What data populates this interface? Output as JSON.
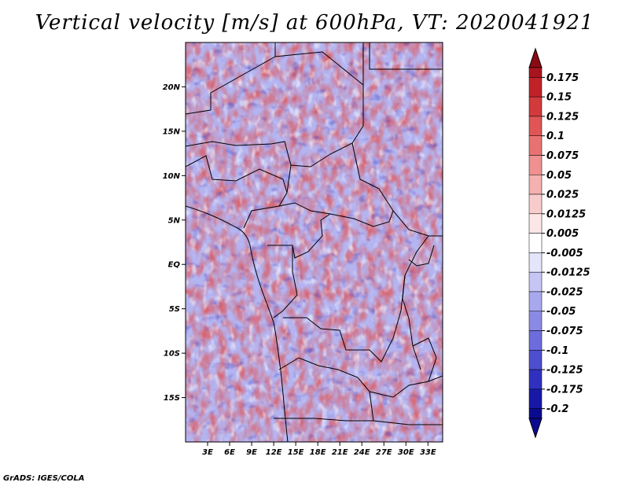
{
  "title": "Vertical velocity [m/s] at 600hPa, VT: 2020041921",
  "credit": "GrADS: IGES/COLA",
  "map": {
    "lon_range": [
      0,
      35
    ],
    "lat_range": [
      -20,
      25
    ],
    "lat_ticks": [
      {
        "label": "20N",
        "lat": 20
      },
      {
        "label": "15N",
        "lat": 15
      },
      {
        "label": "10N",
        "lat": 10
      },
      {
        "label": "5N",
        "lat": 5
      },
      {
        "label": "EQ",
        "lat": 0
      },
      {
        "label": "5S",
        "lat": -5
      },
      {
        "label": "10S",
        "lat": -10
      },
      {
        "label": "15S",
        "lat": -15
      }
    ],
    "lon_ticks": [
      {
        "label": "3E",
        "lon": 3
      },
      {
        "label": "6E",
        "lon": 6
      },
      {
        "label": "9E",
        "lon": 9
      },
      {
        "label": "12E",
        "lon": 12
      },
      {
        "label": "15E",
        "lon": 15
      },
      {
        "label": "18E",
        "lon": 18
      },
      {
        "label": "21E",
        "lon": 21
      },
      {
        "label": "24E",
        "lon": 24
      },
      {
        "label": "27E",
        "lon": 27
      },
      {
        "label": "30E",
        "lon": 30
      },
      {
        "label": "33E",
        "lon": 33
      }
    ]
  },
  "colorbar": {
    "levels": [
      {
        "label": "0.175",
        "color": "#a8141e"
      },
      {
        "label": "0.15",
        "color": "#c02228"
      },
      {
        "label": "0.125",
        "color": "#d23a3c"
      },
      {
        "label": "0.1",
        "color": "#e05555"
      },
      {
        "label": "0.075",
        "color": "#e87272"
      },
      {
        "label": "0.05",
        "color": "#f09090"
      },
      {
        "label": "0.025",
        "color": "#f5b0b0"
      },
      {
        "label": "0.0125",
        "color": "#f9cccc"
      },
      {
        "label": "0.005",
        "color": "#fce6e6"
      },
      {
        "label": "-0.005",
        "color": "#ffffff"
      },
      {
        "label": "-0.0125",
        "color": "#e4e4fb"
      },
      {
        "label": "-0.025",
        "color": "#c6c6f5"
      },
      {
        "label": "-0.05",
        "color": "#a8a8ef"
      },
      {
        "label": "-0.075",
        "color": "#8a8ae6"
      },
      {
        "label": "-0.1",
        "color": "#6c6cdc"
      },
      {
        "label": "-0.125",
        "color": "#4e4ed0"
      },
      {
        "label": "-0.175",
        "color": "#3030c0"
      },
      {
        "label": "-0.2",
        "color": "#1818a8"
      }
    ],
    "top_color": "#8c0a14",
    "bottom_color": "#0a0a90"
  }
}
